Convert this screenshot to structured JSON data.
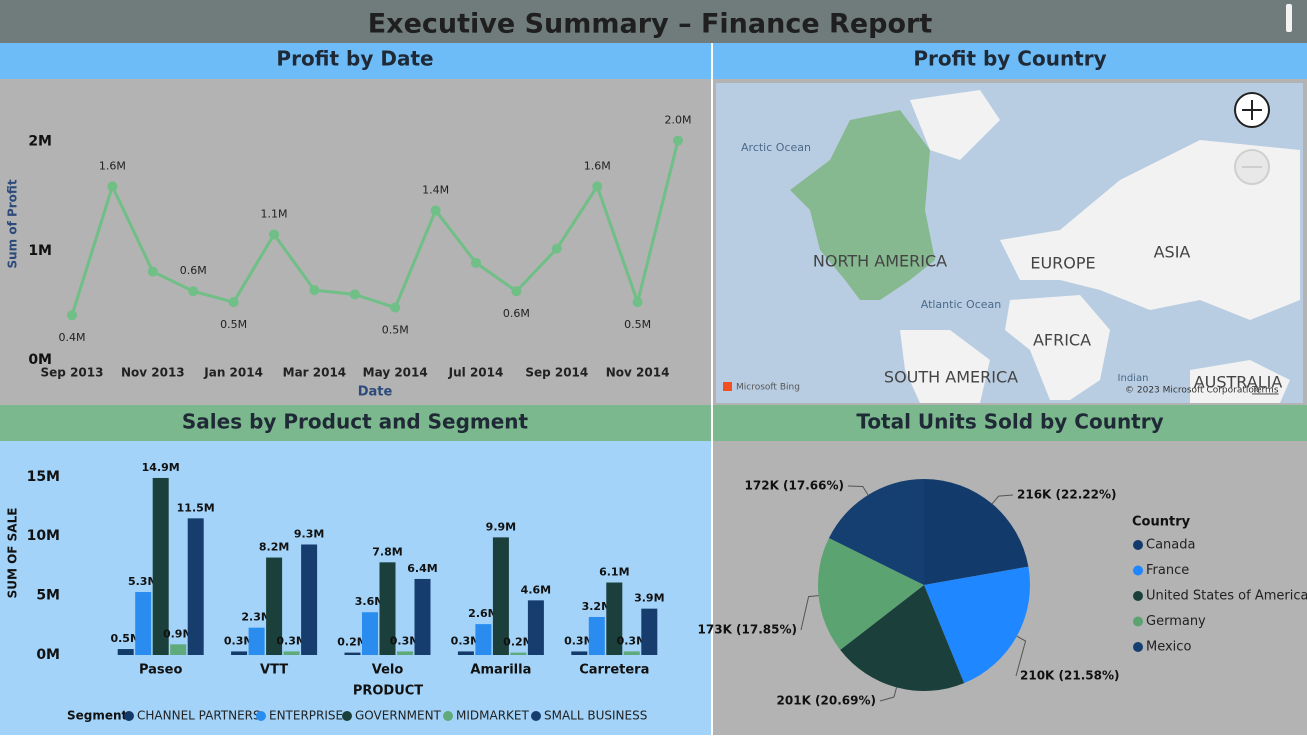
{
  "title": "Executive Summary – Finance Report",
  "chart_data": [
    {
      "type": "line",
      "title": "Profit by Date",
      "x_label": "Date",
      "y_label": "Sum of Profit",
      "color": "#6fbf86",
      "categories": [
        "Sep 2013",
        null,
        "Nov 2013",
        null,
        "Jan 2014",
        null,
        "Mar 2014",
        null,
        "May 2014",
        null,
        "Jul 2014",
        null,
        "Sep 2014",
        null,
        "Nov 2014",
        null
      ],
      "values": [
        410000,
        1590000,
        810000,
        630000,
        530000,
        1150000,
        640000,
        600000,
        480000,
        1370000,
        890000,
        630000,
        1020000,
        1590000,
        530000,
        2010000
      ],
      "value_labels": [
        "0.4M",
        "1.6M",
        null,
        "0.6M",
        "0.5M",
        "1.1M",
        null,
        null,
        "0.5M",
        "1.4M",
        null,
        "0.6M",
        null,
        "1.6M",
        "0.5M",
        "2.0M"
      ],
      "ylim": [
        0,
        2400000
      ],
      "yticks": [
        {
          "value": 0,
          "label": "0M"
        },
        {
          "value": 1000000,
          "label": "1M"
        },
        {
          "value": 2000000,
          "label": "2M"
        }
      ]
    },
    {
      "type": "bar",
      "title": "Sales by Product and Segment",
      "x_label": "PRODUCT",
      "y_label": "SUM OF SALE",
      "legend_title": "Segment",
      "categories": [
        "Paseo",
        "VTT",
        "Velo",
        "Amarilla",
        "Carretera"
      ],
      "series": [
        {
          "name": "CHANNEL PARTNERS",
          "color": "#143a6a",
          "values": [
            500000,
            300000,
            200000,
            300000,
            300000
          ],
          "value_labels": [
            "0.5M",
            "0.3M",
            "0.2M",
            "0.3M",
            "0.3M"
          ]
        },
        {
          "name": "ENTERPRISE",
          "color": "#2b8cf0",
          "values": [
            5300000,
            2300000,
            3600000,
            2600000,
            3200000
          ],
          "value_labels": [
            "5.3M",
            "2.3M",
            "3.6M",
            "2.6M",
            "3.2M"
          ]
        },
        {
          "name": "GOVERNMENT",
          "color": "#1b3f3a",
          "values": [
            14900000,
            8200000,
            7800000,
            9900000,
            6100000
          ],
          "value_labels": [
            "14.9M",
            "8.2M",
            "7.8M",
            "9.9M",
            "6.1M"
          ]
        },
        {
          "name": "MIDMARKET",
          "color": "#5fa97a",
          "values": [
            900000,
            300000,
            300000,
            200000,
            300000
          ],
          "value_labels": [
            "0.9M",
            "0.3M",
            "0.3M",
            "0.2M",
            "0.3M"
          ]
        },
        {
          "name": "SMALL BUSINESS",
          "color": "#163d6e",
          "values": [
            11500000,
            9300000,
            6400000,
            4600000,
            3900000
          ],
          "value_labels": [
            "11.5M",
            "9.3M",
            "6.4M",
            "4.6M",
            "3.9M"
          ]
        }
      ],
      "ylim": [
        0,
        17000000
      ],
      "yticks": [
        {
          "value": 0,
          "label": "0M"
        },
        {
          "value": 5000000,
          "label": "5M"
        },
        {
          "value": 10000000,
          "label": "10M"
        },
        {
          "value": 15000000,
          "label": "15M"
        }
      ]
    },
    {
      "type": "pie",
      "title": "Total Units Sold by Country",
      "legend_title": "Country",
      "categories": [
        "Canada",
        "France",
        "United States of America",
        "Germany",
        "Mexico"
      ],
      "colors": [
        "#123a6b",
        "#1f87ff",
        "#1b3f3a",
        "#5ba371",
        "#153f70"
      ],
      "values": [
        216000,
        210000,
        201000,
        173000,
        172000
      ],
      "value_labels": [
        "216K (22.22%)",
        "210K (21.58%)",
        "201K (20.69%)",
        "173K (17.85%)",
        "172K (17.66%)"
      ]
    }
  ],
  "map": {
    "title": "Profit by Country",
    "labels": [
      "Arctic Ocean",
      "NORTH AMERICA",
      "EUROPE",
      "ASIA",
      "Atlantic Ocean",
      "AFRICA",
      "SOUTH AMERICA",
      "Indian",
      "AUSTRALIA"
    ],
    "attribution": "Microsoft Bing",
    "copyright": "© 2023 Microsoft Corporation",
    "terms": "Terms"
  }
}
